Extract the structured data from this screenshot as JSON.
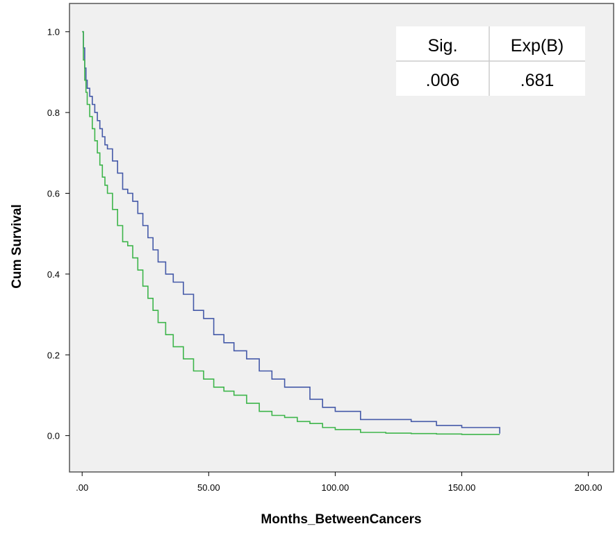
{
  "chart_data": {
    "type": "line",
    "xlabel": "Months_BetweenCancers",
    "ylabel": "Cum Survival",
    "xlim": [
      -5,
      210
    ],
    "ylim": [
      -0.09,
      1.07
    ],
    "xticks": [
      0,
      50,
      100,
      150,
      200
    ],
    "xtick_labels": [
      ".00",
      "50.00",
      "100.00",
      "150.00",
      "200.00"
    ],
    "yticks": [
      0,
      0.2,
      0.4,
      0.6,
      0.8,
      1.0
    ],
    "ytick_labels": [
      "0.0",
      "0.2",
      "0.4",
      "0.6",
      "0.8",
      "1.0"
    ],
    "grid": false,
    "background": "#f0f0f0",
    "stats_table": {
      "headers": [
        "Sig.",
        "Exp(B)"
      ],
      "values": [
        ".006",
        ".681"
      ]
    },
    "series": [
      {
        "color": "#4459a8",
        "x": [
          0,
          0.5,
          1,
          1.5,
          2,
          3,
          4,
          5,
          6,
          7,
          8,
          9,
          10,
          12,
          14,
          16,
          18,
          20,
          22,
          24,
          26,
          28,
          30,
          33,
          36,
          40,
          44,
          48,
          52,
          56,
          60,
          65,
          70,
          75,
          80,
          85,
          90,
          95,
          100,
          110,
          120,
          130,
          140,
          150,
          165,
          165
        ],
        "y": [
          1.0,
          0.96,
          0.91,
          0.88,
          0.86,
          0.84,
          0.82,
          0.8,
          0.78,
          0.76,
          0.74,
          0.72,
          0.71,
          0.68,
          0.65,
          0.61,
          0.6,
          0.58,
          0.55,
          0.52,
          0.49,
          0.46,
          0.43,
          0.4,
          0.38,
          0.35,
          0.31,
          0.29,
          0.25,
          0.23,
          0.21,
          0.19,
          0.16,
          0.14,
          0.12,
          0.12,
          0.09,
          0.07,
          0.06,
          0.04,
          0.04,
          0.035,
          0.025,
          0.02,
          0.02,
          0.005
        ]
      },
      {
        "color": "#3db54a",
        "x": [
          0,
          0.5,
          1,
          1.5,
          2,
          3,
          4,
          5,
          6,
          7,
          8,
          9,
          10,
          12,
          14,
          16,
          18,
          20,
          22,
          24,
          26,
          28,
          30,
          33,
          36,
          40,
          44,
          48,
          52,
          56,
          60,
          65,
          70,
          75,
          80,
          85,
          90,
          95,
          100,
          110,
          120,
          130,
          140,
          150,
          165,
          165
        ],
        "y": [
          1.0,
          0.93,
          0.88,
          0.85,
          0.82,
          0.79,
          0.76,
          0.73,
          0.7,
          0.67,
          0.64,
          0.62,
          0.6,
          0.56,
          0.52,
          0.48,
          0.47,
          0.44,
          0.41,
          0.37,
          0.34,
          0.31,
          0.28,
          0.25,
          0.22,
          0.19,
          0.16,
          0.14,
          0.12,
          0.11,
          0.1,
          0.08,
          0.06,
          0.05,
          0.045,
          0.035,
          0.03,
          0.02,
          0.015,
          0.008,
          0.006,
          0.005,
          0.004,
          0.003,
          0.003,
          0.003
        ]
      }
    ]
  }
}
